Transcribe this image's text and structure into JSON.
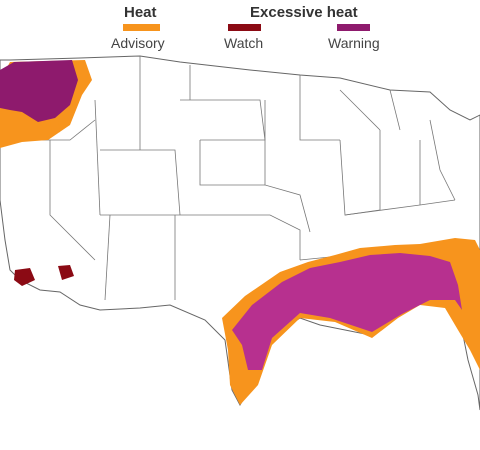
{
  "legend": {
    "heat_title": "Heat",
    "excessive_title": "Excessive heat",
    "items": [
      {
        "label": "Advisory",
        "color": "#f7941d"
      },
      {
        "label": "Watch",
        "color": "#8b0a14"
      },
      {
        "label": "Warning",
        "color": "#8e1a6d"
      }
    ]
  },
  "colors": {
    "land": "#ffffff",
    "border": "#666666",
    "warning_fill": "#b7308f"
  }
}
